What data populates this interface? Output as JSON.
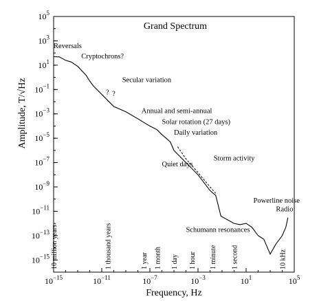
{
  "chart_data": {
    "type": "line",
    "title": "Grand Spectrum",
    "xlabel": "Frequency, Hz",
    "ylabel": "Amplitude, T/√Hz",
    "x_scale": "log",
    "y_scale": "log",
    "xlim": [
      1e-15,
      100000.0
    ],
    "ylim": [
      1e-16,
      100000.0
    ],
    "x_ticks": [
      {
        "value": 1e-15,
        "base": "10",
        "exp": "−15"
      },
      {
        "value": 1e-11,
        "base": "10",
        "exp": "−11"
      },
      {
        "value": 1e-07,
        "base": "10",
        "exp": "−7"
      },
      {
        "value": 0.001,
        "base": "10",
        "exp": "−3"
      },
      {
        "value": 10,
        "base": "10",
        "exp": "1"
      },
      {
        "value": 100000.0,
        "base": "10",
        "exp": "5"
      }
    ],
    "y_ticks": [
      {
        "value": 100000.0,
        "base": "10",
        "exp": "5"
      },
      {
        "value": 1000.0,
        "base": "10",
        "exp": "3"
      },
      {
        "value": 10,
        "base": "10",
        "exp": "1"
      },
      {
        "value": 0.1,
        "base": "10",
        "exp": "−1"
      },
      {
        "value": 0.001,
        "base": "10",
        "exp": "−3"
      },
      {
        "value": 1e-05,
        "base": "10",
        "exp": "−5"
      },
      {
        "value": 1e-07,
        "base": "10",
        "exp": "−7"
      },
      {
        "value": 1e-09,
        "base": "10",
        "exp": "−9"
      },
      {
        "value": 1e-11,
        "base": "10",
        "exp": "−11"
      },
      {
        "value": 1e-13,
        "base": "10",
        "exp": "−13"
      },
      {
        "value": 1e-15,
        "base": "10",
        "exp": "−15"
      }
    ],
    "series": [
      {
        "style": "solid",
        "points": [
          [
            1e-15,
            50
          ],
          [
            3e-15,
            48
          ],
          [
            1e-14,
            25
          ],
          [
            3e-14,
            18
          ],
          [
            1e-13,
            8
          ],
          [
            5e-13,
            1.5
          ],
          [
            1e-12,
            0.5
          ],
          [
            2e-12,
            0.2
          ],
          [
            1e-10,
            0.004
          ],
          [
            1e-09,
            0.0015
          ],
          [
            1e-08,
            0.0004
          ],
          [
            5e-08,
            0.00015
          ],
          [
            1e-07,
            0.0001
          ],
          [
            4e-07,
            5e-05
          ],
          [
            1e-06,
            2e-05
          ],
          [
            5e-06,
            5e-06
          ],
          [
            1e-05,
            1e-06
          ],
          [
            0.0001,
            1e-07
          ],
          [
            0.001,
            1e-08
          ],
          [
            0.01,
            5e-10
          ],
          [
            0.03,
            2e-10
          ],
          [
            0.08,
            4e-12
          ],
          [
            1,
            1e-12
          ],
          [
            3,
            8e-13
          ],
          [
            10,
            1e-12
          ],
          [
            30,
            5e-13
          ],
          [
            100,
            1e-13
          ],
          [
            300,
            5e-14
          ],
          [
            1000,
            3e-15
          ],
          [
            3000,
            2e-14
          ],
          [
            10000.0,
            1e-13
          ],
          [
            20000.0,
            5e-13
          ],
          [
            30000.0,
            3e-12
          ]
        ]
      },
      {
        "style": "dashed",
        "points": [
          [
            2e-05,
            2e-06
          ],
          [
            0.0001,
            2e-07
          ],
          [
            0.001,
            1.5e-08
          ],
          [
            0.01,
            1e-09
          ],
          [
            0.03,
            3e-10
          ]
        ]
      }
    ],
    "question_marks": [
      {
        "x": 3e-11,
        "y": 0.04,
        "label": "?"
      },
      {
        "x": 1e-10,
        "y": 0.03,
        "label": "?"
      }
    ],
    "annotations": [
      {
        "text": "Reversals",
        "x": 1e-15,
        "y": 250
      },
      {
        "text": "Cryptochrons?",
        "x": 2e-13,
        "y": 35
      },
      {
        "text": "Secular variation",
        "x": 5e-10,
        "y": 0.4
      },
      {
        "text": "Annual and semi-annual",
        "x": 2e-08,
        "y": 0.0012
      },
      {
        "text": "Solar rotation (27 days)",
        "x": 1e-06,
        "y": 0.00015
      },
      {
        "text": "Daily variation",
        "x": 1e-05,
        "y": 2e-05
      },
      {
        "text": "Storm activity",
        "x": 0.02,
        "y": 1.5e-07
      },
      {
        "text": "Quiet days",
        "x": 1e-06,
        "y": 5e-08
      },
      {
        "text": "Powerline noise",
        "x": 40,
        "y": 5e-11
      },
      {
        "text": "Radio",
        "x": 3000,
        "y": 1e-11
      },
      {
        "text": "Schumann resonances",
        "x": 0.0001,
        "y": 2e-13
      }
    ],
    "period_labels": [
      {
        "text": "10 million years",
        "x": 1e-15
      },
      {
        "text": "1 thousand years",
        "x": 3e-11
      },
      {
        "text": "1 year",
        "x": 3e-08
      },
      {
        "text": "1 month",
        "x": 4e-07
      },
      {
        "text": "1 day",
        "x": 1e-05
      },
      {
        "text": "1 hour",
        "x": 0.0003
      },
      {
        "text": "1 minute",
        "x": 0.016
      },
      {
        "text": "1 second",
        "x": 1
      },
      {
        "text": "10 kHz",
        "x": 10000.0
      }
    ]
  }
}
